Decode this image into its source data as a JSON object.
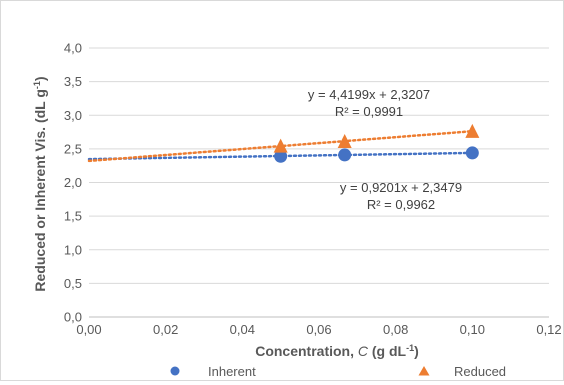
{
  "chart_data": {
    "type": "scatter",
    "x_axis": {
      "label": "Concentration, ",
      "label_symbol": "C",
      "label_units_open": " (g dL",
      "label_units_sup": "-1",
      "label_units_close": ")",
      "range": [
        0,
        0.12
      ],
      "ticks": [
        0,
        0.02,
        0.04,
        0.06,
        0.08,
        0.1,
        0.12
      ],
      "tick_labels": [
        "0,00",
        "0,02",
        "0,04",
        "0,06",
        "0,08",
        "0,10",
        "0,12"
      ]
    },
    "y_axis": {
      "label": "Reduced or Inherent Vis. (dL g",
      "label_sup": "-1",
      "label_close": ")",
      "range": [
        0,
        4.0
      ],
      "ticks": [
        0,
        0.5,
        1.0,
        1.5,
        2.0,
        2.5,
        3.0,
        3.5,
        4.0
      ],
      "tick_labels": [
        "0,0",
        "0,5",
        "1,0",
        "1,5",
        "2,0",
        "2,5",
        "3,0",
        "3,5",
        "4,0"
      ]
    },
    "grid": "horizontal",
    "legend_position": "bottom",
    "series": [
      {
        "name": "Inherent",
        "marker": "circle",
        "color": "#4472c4",
        "points": [
          {
            "x": 0.05,
            "y": 2.39
          },
          {
            "x": 0.0667,
            "y": 2.41
          },
          {
            "x": 0.1,
            "y": 2.44
          }
        ],
        "trendline": {
          "slope": 0.9201,
          "intercept": 2.3479,
          "x_range": [
            0,
            0.1
          ]
        },
        "equation": "y = 0,9201x + 2,3479",
        "r2": "R² = 0,9962"
      },
      {
        "name": "Reduced",
        "marker": "triangle",
        "color": "#ed7d31",
        "points": [
          {
            "x": 0.05,
            "y": 2.54
          },
          {
            "x": 0.0667,
            "y": 2.61
          },
          {
            "x": 0.1,
            "y": 2.76
          }
        ],
        "trendline": {
          "slope": 4.4199,
          "intercept": 2.3207,
          "x_range": [
            0,
            0.1
          ]
        },
        "equation": "y = 4,4199x + 2,3207",
        "r2": "R² = 0,9991"
      }
    ]
  }
}
